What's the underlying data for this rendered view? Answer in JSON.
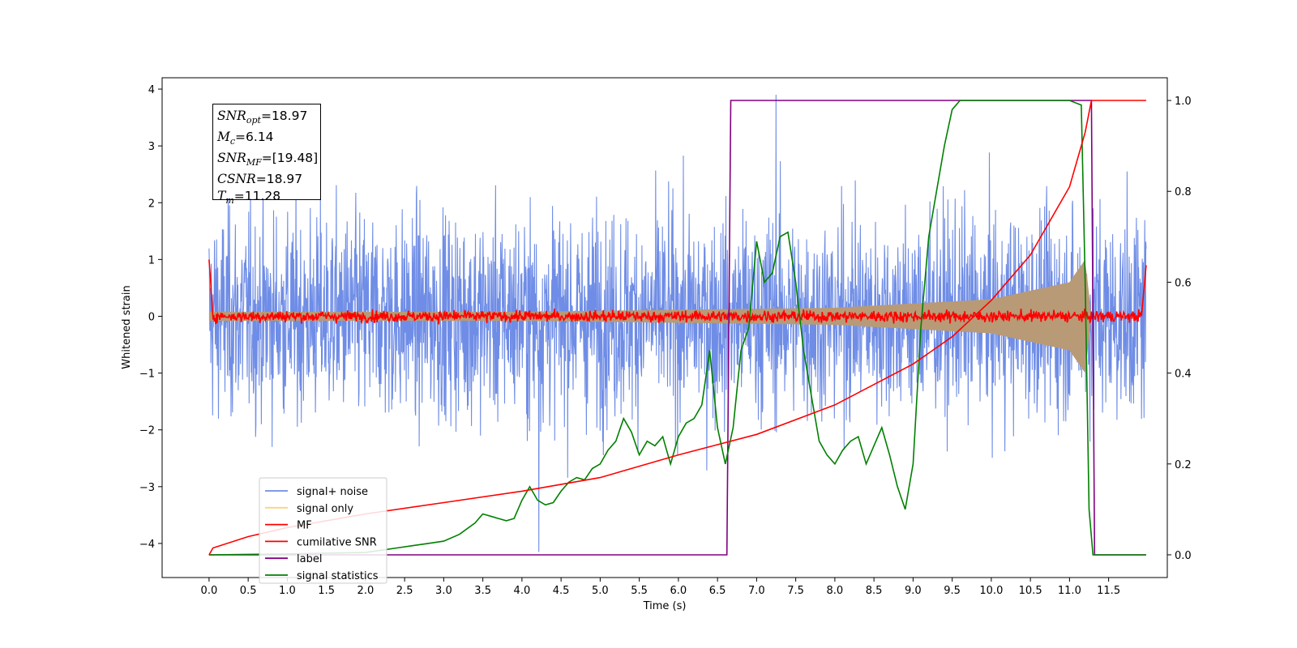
{
  "chart_data": {
    "type": "line",
    "xlabel": "Time (s)",
    "ylabel": "Whitened strain",
    "xlim": [
      -0.6,
      12.25
    ],
    "ylim": [
      -4.6,
      4.2
    ],
    "ylim_right": [
      -0.05,
      1.05
    ],
    "xticks": [
      "0.0",
      "0.5",
      "1.0",
      "1.5",
      "2.0",
      "2.5",
      "3.0",
      "3.5",
      "4.0",
      "4.5",
      "5.0",
      "5.5",
      "6.0",
      "6.5",
      "7.0",
      "7.5",
      "8.0",
      "8.5",
      "9.0",
      "9.5",
      "10.0",
      "10.5",
      "11.0",
      "11.5"
    ],
    "yticks_left": [
      "4",
      "3",
      "2",
      "1",
      "0",
      "−1",
      "−2",
      "−3",
      "−4"
    ],
    "yticks_right": [
      "1.0",
      "0.8",
      "0.6",
      "0.4",
      "0.2",
      "0.0"
    ],
    "grid": false,
    "legend_position": "lower-left",
    "annotation": {
      "snr_opt": {
        "name": "SNR",
        "sub": "opt",
        "value": "=18.97"
      },
      "mc": {
        "name": "M",
        "sub": "c",
        "value": "=6.14"
      },
      "snr_mf": {
        "name": "SNR",
        "sub": "MF",
        "value": "=[19.48]"
      },
      "csnr": {
        "name": "CSNR",
        "sub": "",
        "value": "=18.97"
      },
      "tm": {
        "name": "T",
        "sub": "m",
        "value": "=11.28"
      }
    },
    "series": [
      {
        "name": "signal+ noise",
        "color": "#6f8de6",
        "axis": "left",
        "x_range": [
          0.0,
          11.98
        ],
        "std": 0.9,
        "max": 3.9,
        "min": -4.15
      },
      {
        "name": "signal only",
        "color": "#ffd27f",
        "axis": "left",
        "envelope": [
          [
            0.0,
            0.08
          ],
          [
            4.0,
            0.08
          ],
          [
            8.0,
            0.15
          ],
          [
            10.0,
            0.3
          ],
          [
            11.0,
            0.6
          ],
          [
            11.2,
            1.0
          ],
          [
            11.28,
            0.0
          ]
        ]
      },
      {
        "name": "MF",
        "color": "#ff0000",
        "axis": "left",
        "x_range": [
          0.0,
          11.98
        ],
        "start": 1.0,
        "end": 0.9,
        "noise": 0.05
      },
      {
        "name": "cumilative SNR",
        "color": "#ff0000",
        "axis": "right",
        "x": [
          0.0,
          0.05,
          0.5,
          1.0,
          2.0,
          3.0,
          4.0,
          5.0,
          6.0,
          7.0,
          8.0,
          9.0,
          9.5,
          10.0,
          10.5,
          11.0,
          11.2,
          11.28,
          11.98
        ],
        "y": [
          0.0,
          0.015,
          0.04,
          0.06,
          0.09,
          0.115,
          0.14,
          0.17,
          0.22,
          0.265,
          0.33,
          0.42,
          0.48,
          0.56,
          0.66,
          0.81,
          0.93,
          1.0,
          1.0
        ]
      },
      {
        "name": "label",
        "color": "#800080",
        "axis": "right",
        "x": [
          0.0,
          6.62,
          6.67,
          11.28,
          11.32,
          11.98
        ],
        "y": [
          0.0,
          0.0,
          1.0,
          1.0,
          0.0,
          0.0
        ]
      },
      {
        "name": "signal statistics",
        "color": "#008000",
        "axis": "right",
        "x": [
          0.0,
          1.0,
          2.0,
          2.2,
          2.4,
          2.6,
          2.8,
          3.0,
          3.2,
          3.4,
          3.5,
          3.6,
          3.7,
          3.8,
          3.9,
          4.0,
          4.1,
          4.2,
          4.3,
          4.4,
          4.5,
          4.6,
          4.7,
          4.8,
          4.9,
          5.0,
          5.1,
          5.2,
          5.3,
          5.4,
          5.5,
          5.6,
          5.7,
          5.8,
          5.9,
          6.0,
          6.1,
          6.2,
          6.3,
          6.4,
          6.5,
          6.6,
          6.7,
          6.8,
          6.9,
          7.0,
          7.1,
          7.2,
          7.3,
          7.4,
          7.5,
          7.6,
          7.7,
          7.8,
          7.9,
          8.0,
          8.1,
          8.2,
          8.3,
          8.4,
          8.5,
          8.6,
          8.7,
          8.8,
          8.9,
          9.0,
          9.1,
          9.2,
          9.3,
          9.4,
          9.5,
          9.6,
          9.7,
          10.0,
          10.5,
          11.0,
          11.15,
          11.2,
          11.25,
          11.3,
          11.98
        ],
        "y": [
          0.0,
          0.002,
          0.005,
          0.01,
          0.015,
          0.02,
          0.025,
          0.03,
          0.045,
          0.07,
          0.09,
          0.085,
          0.08,
          0.075,
          0.08,
          0.12,
          0.15,
          0.12,
          0.11,
          0.115,
          0.14,
          0.16,
          0.17,
          0.165,
          0.19,
          0.2,
          0.23,
          0.25,
          0.3,
          0.27,
          0.22,
          0.25,
          0.24,
          0.26,
          0.2,
          0.26,
          0.29,
          0.3,
          0.33,
          0.45,
          0.28,
          0.2,
          0.28,
          0.45,
          0.5,
          0.69,
          0.6,
          0.62,
          0.7,
          0.71,
          0.6,
          0.45,
          0.35,
          0.25,
          0.22,
          0.2,
          0.23,
          0.25,
          0.26,
          0.2,
          0.24,
          0.28,
          0.22,
          0.15,
          0.1,
          0.2,
          0.5,
          0.7,
          0.8,
          0.9,
          0.98,
          1.0,
          1.0,
          1.0,
          1.0,
          1.0,
          0.99,
          0.6,
          0.1,
          0.0,
          0.0
        ]
      }
    ]
  }
}
